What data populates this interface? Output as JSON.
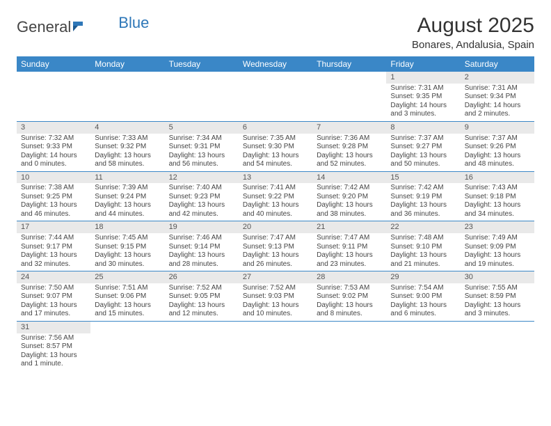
{
  "logo": {
    "text1": "General",
    "text2": "Blue"
  },
  "title": "August 2025",
  "location": "Bonares, Andalusia, Spain",
  "weekdays": [
    "Sunday",
    "Monday",
    "Tuesday",
    "Wednesday",
    "Thursday",
    "Friday",
    "Saturday"
  ],
  "colors": {
    "header_bg": "#3a87c7",
    "daynum_bg": "#e9e9e9",
    "border": "#3a87c7"
  },
  "weeks": [
    [
      null,
      null,
      null,
      null,
      null,
      {
        "n": "1",
        "sunrise": "Sunrise: 7:31 AM",
        "sunset": "Sunset: 9:35 PM",
        "daylight": "Daylight: 14 hours and 3 minutes."
      },
      {
        "n": "2",
        "sunrise": "Sunrise: 7:31 AM",
        "sunset": "Sunset: 9:34 PM",
        "daylight": "Daylight: 14 hours and 2 minutes."
      }
    ],
    [
      {
        "n": "3",
        "sunrise": "Sunrise: 7:32 AM",
        "sunset": "Sunset: 9:33 PM",
        "daylight": "Daylight: 14 hours and 0 minutes."
      },
      {
        "n": "4",
        "sunrise": "Sunrise: 7:33 AM",
        "sunset": "Sunset: 9:32 PM",
        "daylight": "Daylight: 13 hours and 58 minutes."
      },
      {
        "n": "5",
        "sunrise": "Sunrise: 7:34 AM",
        "sunset": "Sunset: 9:31 PM",
        "daylight": "Daylight: 13 hours and 56 minutes."
      },
      {
        "n": "6",
        "sunrise": "Sunrise: 7:35 AM",
        "sunset": "Sunset: 9:30 PM",
        "daylight": "Daylight: 13 hours and 54 minutes."
      },
      {
        "n": "7",
        "sunrise": "Sunrise: 7:36 AM",
        "sunset": "Sunset: 9:28 PM",
        "daylight": "Daylight: 13 hours and 52 minutes."
      },
      {
        "n": "8",
        "sunrise": "Sunrise: 7:37 AM",
        "sunset": "Sunset: 9:27 PM",
        "daylight": "Daylight: 13 hours and 50 minutes."
      },
      {
        "n": "9",
        "sunrise": "Sunrise: 7:37 AM",
        "sunset": "Sunset: 9:26 PM",
        "daylight": "Daylight: 13 hours and 48 minutes."
      }
    ],
    [
      {
        "n": "10",
        "sunrise": "Sunrise: 7:38 AM",
        "sunset": "Sunset: 9:25 PM",
        "daylight": "Daylight: 13 hours and 46 minutes."
      },
      {
        "n": "11",
        "sunrise": "Sunrise: 7:39 AM",
        "sunset": "Sunset: 9:24 PM",
        "daylight": "Daylight: 13 hours and 44 minutes."
      },
      {
        "n": "12",
        "sunrise": "Sunrise: 7:40 AM",
        "sunset": "Sunset: 9:23 PM",
        "daylight": "Daylight: 13 hours and 42 minutes."
      },
      {
        "n": "13",
        "sunrise": "Sunrise: 7:41 AM",
        "sunset": "Sunset: 9:22 PM",
        "daylight": "Daylight: 13 hours and 40 minutes."
      },
      {
        "n": "14",
        "sunrise": "Sunrise: 7:42 AM",
        "sunset": "Sunset: 9:20 PM",
        "daylight": "Daylight: 13 hours and 38 minutes."
      },
      {
        "n": "15",
        "sunrise": "Sunrise: 7:42 AM",
        "sunset": "Sunset: 9:19 PM",
        "daylight": "Daylight: 13 hours and 36 minutes."
      },
      {
        "n": "16",
        "sunrise": "Sunrise: 7:43 AM",
        "sunset": "Sunset: 9:18 PM",
        "daylight": "Daylight: 13 hours and 34 minutes."
      }
    ],
    [
      {
        "n": "17",
        "sunrise": "Sunrise: 7:44 AM",
        "sunset": "Sunset: 9:17 PM",
        "daylight": "Daylight: 13 hours and 32 minutes."
      },
      {
        "n": "18",
        "sunrise": "Sunrise: 7:45 AM",
        "sunset": "Sunset: 9:15 PM",
        "daylight": "Daylight: 13 hours and 30 minutes."
      },
      {
        "n": "19",
        "sunrise": "Sunrise: 7:46 AM",
        "sunset": "Sunset: 9:14 PM",
        "daylight": "Daylight: 13 hours and 28 minutes."
      },
      {
        "n": "20",
        "sunrise": "Sunrise: 7:47 AM",
        "sunset": "Sunset: 9:13 PM",
        "daylight": "Daylight: 13 hours and 26 minutes."
      },
      {
        "n": "21",
        "sunrise": "Sunrise: 7:47 AM",
        "sunset": "Sunset: 9:11 PM",
        "daylight": "Daylight: 13 hours and 23 minutes."
      },
      {
        "n": "22",
        "sunrise": "Sunrise: 7:48 AM",
        "sunset": "Sunset: 9:10 PM",
        "daylight": "Daylight: 13 hours and 21 minutes."
      },
      {
        "n": "23",
        "sunrise": "Sunrise: 7:49 AM",
        "sunset": "Sunset: 9:09 PM",
        "daylight": "Daylight: 13 hours and 19 minutes."
      }
    ],
    [
      {
        "n": "24",
        "sunrise": "Sunrise: 7:50 AM",
        "sunset": "Sunset: 9:07 PM",
        "daylight": "Daylight: 13 hours and 17 minutes."
      },
      {
        "n": "25",
        "sunrise": "Sunrise: 7:51 AM",
        "sunset": "Sunset: 9:06 PM",
        "daylight": "Daylight: 13 hours and 15 minutes."
      },
      {
        "n": "26",
        "sunrise": "Sunrise: 7:52 AM",
        "sunset": "Sunset: 9:05 PM",
        "daylight": "Daylight: 13 hours and 12 minutes."
      },
      {
        "n": "27",
        "sunrise": "Sunrise: 7:52 AM",
        "sunset": "Sunset: 9:03 PM",
        "daylight": "Daylight: 13 hours and 10 minutes."
      },
      {
        "n": "28",
        "sunrise": "Sunrise: 7:53 AM",
        "sunset": "Sunset: 9:02 PM",
        "daylight": "Daylight: 13 hours and 8 minutes."
      },
      {
        "n": "29",
        "sunrise": "Sunrise: 7:54 AM",
        "sunset": "Sunset: 9:00 PM",
        "daylight": "Daylight: 13 hours and 6 minutes."
      },
      {
        "n": "30",
        "sunrise": "Sunrise: 7:55 AM",
        "sunset": "Sunset: 8:59 PM",
        "daylight": "Daylight: 13 hours and 3 minutes."
      }
    ],
    [
      {
        "n": "31",
        "sunrise": "Sunrise: 7:56 AM",
        "sunset": "Sunset: 8:57 PM",
        "daylight": "Daylight: 13 hours and 1 minute."
      },
      null,
      null,
      null,
      null,
      null,
      null
    ]
  ]
}
